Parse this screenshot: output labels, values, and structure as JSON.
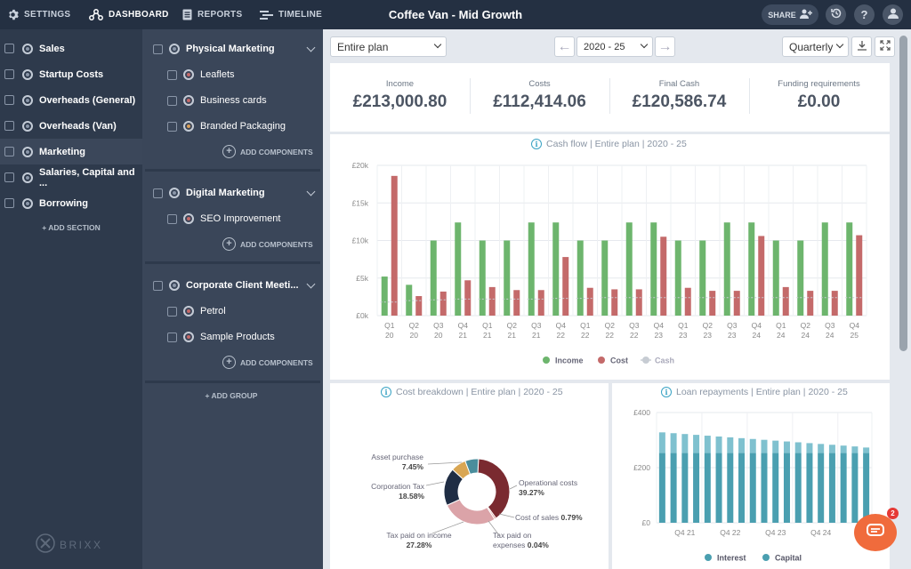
{
  "topbar": {
    "settings": "SETTINGS",
    "dashboard": "DASHBOARD",
    "reports": "REPORTS",
    "timeline": "TIMELINE",
    "title": "Coffee Van - Mid Growth",
    "share": "SHARE"
  },
  "sections": [
    {
      "label": "Sales"
    },
    {
      "label": "Startup Costs"
    },
    {
      "label": "Overheads (General)"
    },
    {
      "label": "Overheads (Van)"
    },
    {
      "label": "Marketing"
    },
    {
      "label": "Salaries, Capital and ..."
    },
    {
      "label": "Borrowing"
    }
  ],
  "add_section": "+ ADD SECTION",
  "groups": [
    {
      "label": "Physical Marketing",
      "items": [
        "Leaflets",
        "Business cards",
        "Branded Packaging"
      ]
    },
    {
      "label": "Digital Marketing",
      "items": [
        "SEO Improvement"
      ]
    },
    {
      "label": "Corporate Client Meeti...",
      "items": [
        "Petrol",
        "Sample Products"
      ]
    }
  ],
  "add_components": "ADD COMPONENTS",
  "add_group": "+ ADD GROUP",
  "toolbar": {
    "plan": "Entire plan",
    "period": "2020 - 25",
    "frequency": "Quarterly"
  },
  "kpis": [
    {
      "label": "Income",
      "value": "£213,000.80"
    },
    {
      "label": "Costs",
      "value": "£112,414.06"
    },
    {
      "label": "Final Cash",
      "value": "£120,586.74"
    },
    {
      "label": "Funding requirements",
      "value": "£0.00"
    }
  ],
  "colors": {
    "income": "#6db56d",
    "cost": "#c46a6a",
    "cash": "#c7ccd3",
    "loan": "#4a9fb0",
    "accent": "#3aa3c4"
  },
  "chart_data": [
    {
      "type": "bar",
      "title": "Cash flow | Entire plan | 2020 - 25",
      "categories": [
        "Q1 20",
        "Q2 20",
        "Q3 20",
        "Q4 21",
        "Q1 21",
        "Q2 21",
        "Q3 21",
        "Q4 22",
        "Q1 22",
        "Q2 22",
        "Q3 22",
        "Q4 23",
        "Q1 23",
        "Q2 23",
        "Q3 23",
        "Q4 24",
        "Q1 24",
        "Q2 24",
        "Q3 24",
        "Q4 25"
      ],
      "yticks": [
        "£0k",
        "£5k",
        "£10k",
        "£15k",
        "£20k"
      ],
      "ylim": [
        0,
        20000
      ],
      "series": [
        {
          "name": "Income",
          "values": [
            5200,
            4100,
            10000,
            12400,
            10000,
            10000,
            12400,
            12400,
            10000,
            10000,
            12400,
            12400,
            10000,
            10000,
            12400,
            12400,
            10000,
            10000,
            12400,
            12400
          ]
        },
        {
          "name": "Cost",
          "values": [
            18600,
            2600,
            3200,
            4700,
            3800,
            3400,
            3400,
            7800,
            3700,
            3500,
            3500,
            10500,
            3700,
            3300,
            3300,
            10600,
            3800,
            3300,
            3300,
            10700
          ]
        },
        {
          "name": "Cash",
          "values": [
            1800,
            2000,
            2100,
            2200,
            2200,
            2200,
            2200,
            2300,
            2300,
            2400,
            2400,
            2400,
            2400,
            2400,
            2400,
            2400,
            2400,
            2400,
            2400,
            2400
          ]
        }
      ],
      "legend_position": "bottom"
    },
    {
      "type": "pie",
      "title": "Cost breakdown | Entire plan | 2020 - 25",
      "slices": [
        {
          "label": "Operational costs",
          "pct": "39.27%",
          "value": 39.27,
          "color": "#7a2a30"
        },
        {
          "label": "Cost of sales",
          "pct": "0.79%",
          "value": 0.79,
          "color": "#c9665f"
        },
        {
          "label": "Tax paid on expenses",
          "pct": "0.04%",
          "value": 0.04,
          "color": "#e59e94"
        },
        {
          "label": "Tax paid on income",
          "pct": "27.28%",
          "value": 27.28,
          "color": "#dba3a8"
        },
        {
          "label": "Corporation Tax",
          "pct": "18.58%",
          "value": 18.58,
          "color": "#1f2d44"
        },
        {
          "label": "Asset purchase",
          "pct": "7.45%",
          "value": 7.45,
          "color": "#d9a653"
        },
        {
          "label": "",
          "pct": "",
          "value": 6.59,
          "color": "#4a8d9c"
        }
      ]
    },
    {
      "type": "bar",
      "title": "Loan repayments | Entire plan | 2020 - 25",
      "categories": [
        "",
        "",
        "Q4 21",
        "",
        "",
        "",
        "Q4 22",
        "",
        "",
        "",
        "Q4 23",
        "",
        "",
        "",
        "Q4 24",
        "",
        "",
        "",
        ""
      ],
      "yticks": [
        "£0",
        "£200",
        "£400"
      ],
      "ylim": [
        0,
        400
      ],
      "series": [
        {
          "name": "Interest",
          "values": [
            75,
            72,
            69,
            66,
            63,
            60,
            57,
            54,
            51,
            48,
            45,
            42,
            39,
            36,
            33,
            30,
            27,
            24,
            20
          ]
        },
        {
          "name": "Capital",
          "values": [
            253,
            253,
            253,
            253,
            253,
            253,
            253,
            253,
            253,
            253,
            253,
            253,
            253,
            253,
            253,
            253,
            253,
            253,
            253
          ]
        }
      ],
      "stacked": true,
      "legend_position": "bottom"
    }
  ],
  "logo": "BRIXX",
  "chat_badge": "2"
}
